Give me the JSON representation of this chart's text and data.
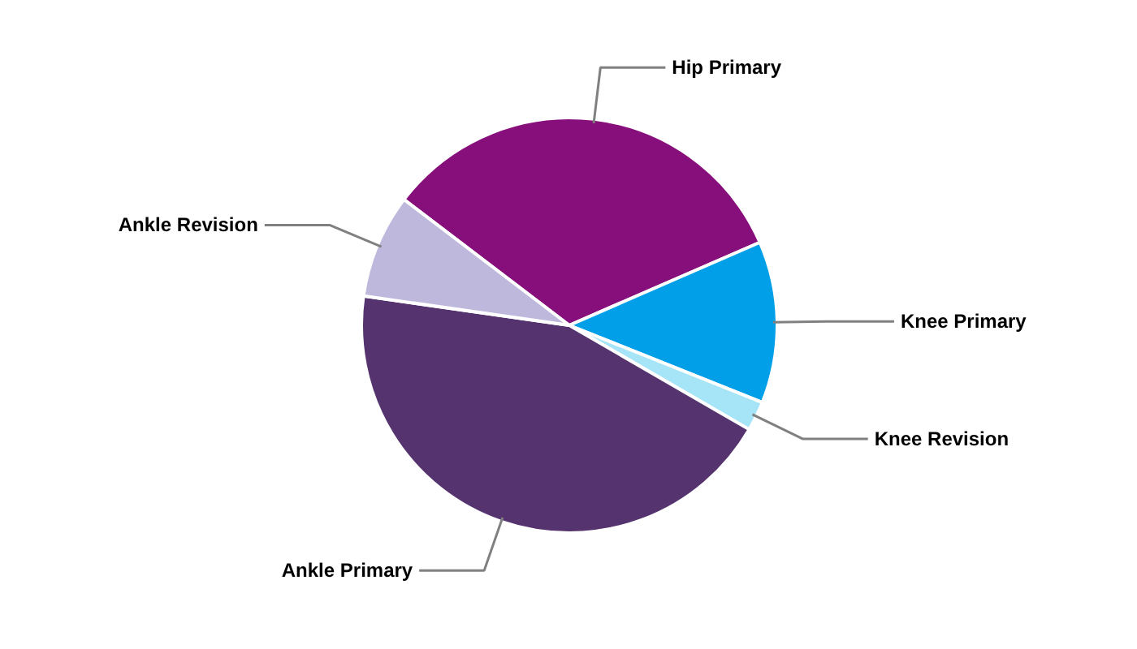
{
  "chart_data": {
    "type": "pie",
    "categories": [
      "Hip Primary",
      "Knee Primary",
      "Knee Revision",
      "Ankle Primary",
      "Ankle Revision"
    ],
    "values": [
      33.1,
      12.6,
      2.3,
      43.9,
      8.1
    ],
    "colors": [
      "#870f7c",
      "#009fe8",
      "#a6e4f7",
      "#54336e",
      "#bfb8dd"
    ]
  }
}
